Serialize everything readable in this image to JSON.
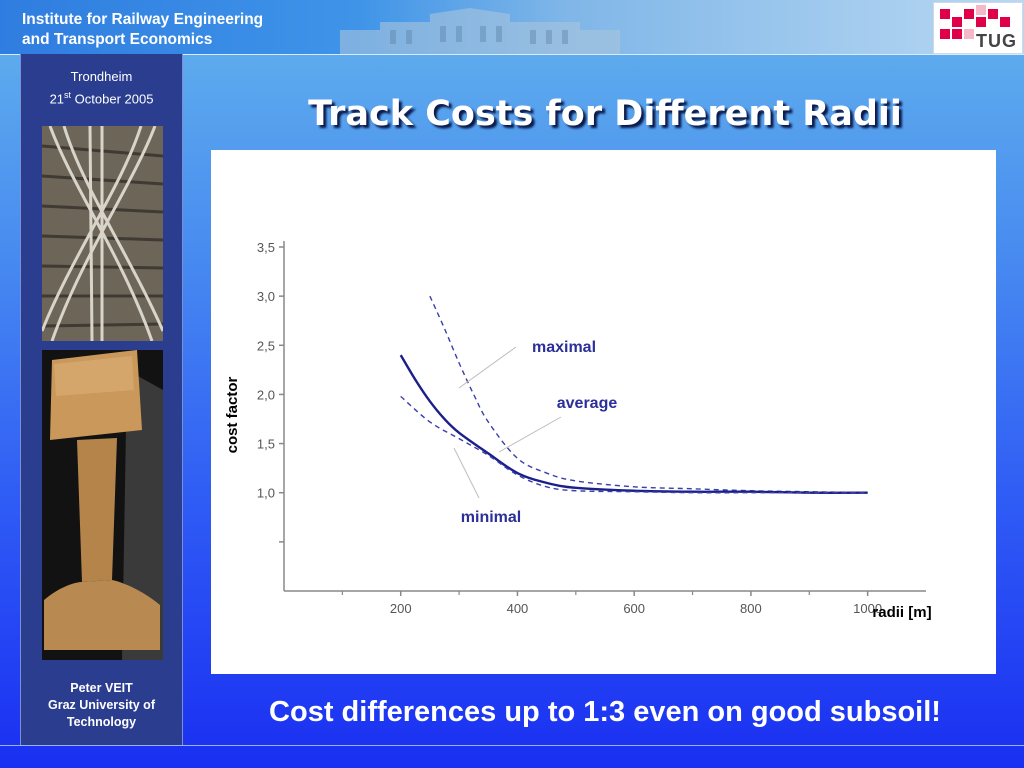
{
  "header": {
    "institute_line1": "Institute for Railway Engineering",
    "institute_line2": "and Transport Economics",
    "logo_text": "TUG",
    "logo_color": "#e0004a"
  },
  "sidebar": {
    "city": "Trondheim",
    "date_day": "21",
    "date_suffix": "st",
    "date_rest": " October 2005",
    "author_name": "Peter VEIT",
    "author_affil_line1": "Graz University of",
    "author_affil_line2": "Technology"
  },
  "slide": {
    "title": "Track Costs for Different Radii",
    "caption": "Cost differences up to 1:3 even on good subsoil!"
  },
  "chart_data": {
    "type": "line",
    "title": "",
    "xlabel": "radii [m]",
    "ylabel": "cost factor",
    "xlim": [
      0,
      1100
    ],
    "ylim": [
      0.0,
      3.5
    ],
    "x_ticks": [
      200,
      400,
      600,
      800,
      1000
    ],
    "x_tick_labels": [
      "200",
      "400",
      "600",
      "800",
      "1000"
    ],
    "y_ticks": [
      1.0,
      1.5,
      2.0,
      2.5,
      3.0,
      3.5
    ],
    "y_tick_labels": [
      "1,0",
      "1,5",
      "2,0",
      "2,5",
      "3,0",
      "3,5"
    ],
    "grid": false,
    "series": [
      {
        "name": "maximal",
        "style": "dashed",
        "color": "#3a3fa8",
        "x": [
          250,
          275,
          300,
          325,
          350,
          400,
          450,
          500,
          600,
          700,
          800,
          900,
          1000
        ],
        "y": [
          3.0,
          2.67,
          2.32,
          2.0,
          1.72,
          1.35,
          1.2,
          1.12,
          1.06,
          1.04,
          1.02,
          1.01,
          1.0
        ]
      },
      {
        "name": "average",
        "style": "solid",
        "color": "#1b1f8a",
        "x": [
          200,
          225,
          250,
          275,
          300,
          350,
          400,
          450,
          500,
          600,
          700,
          800,
          900,
          1000
        ],
        "y": [
          2.4,
          2.15,
          1.93,
          1.75,
          1.61,
          1.4,
          1.2,
          1.1,
          1.05,
          1.02,
          1.01,
          1.01,
          1.0,
          1.0
        ]
      },
      {
        "name": "minimal",
        "style": "dashed",
        "color": "#3a3fa8",
        "x": [
          200,
          250,
          300,
          350,
          400,
          450,
          500,
          600,
          700,
          800,
          900,
          1000
        ],
        "y": [
          1.98,
          1.72,
          1.55,
          1.38,
          1.18,
          1.06,
          1.02,
          1.01,
          1.0,
          1.0,
          1.0,
          1.0
        ]
      }
    ]
  }
}
